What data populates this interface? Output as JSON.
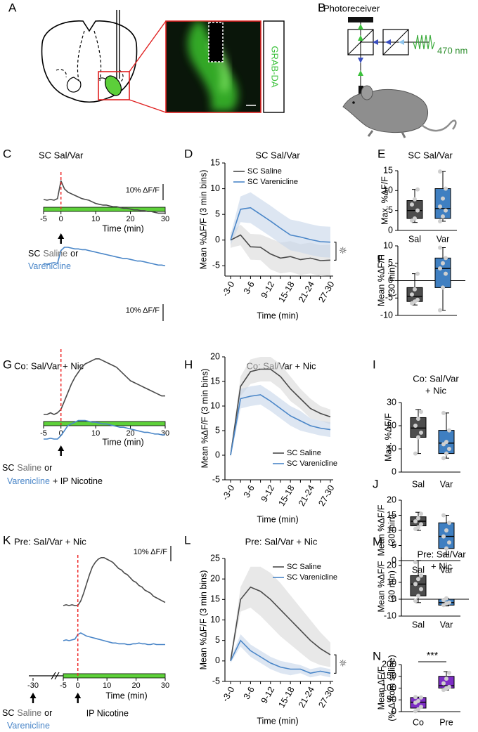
{
  "figure": {
    "panel_labels": [
      "A",
      "B",
      "C",
      "D",
      "E",
      "F",
      "G",
      "H",
      "I",
      "J",
      "K",
      "L",
      "M",
      "N"
    ],
    "grab_label": "GRAB-DA",
    "photoreceiver": "Photoreceiver",
    "wavelength": "470 nm"
  },
  "chart_data": [
    {
      "type": "trace",
      "title": "SC Sal/Var",
      "xlabel": "Time (min)",
      "x": [
        -5,
        -4,
        -3,
        -2,
        -1,
        0,
        1,
        2,
        3,
        4,
        5,
        6,
        7,
        8,
        9,
        10,
        11,
        12,
        13,
        14,
        15,
        16,
        17,
        18,
        19,
        20,
        21,
        22,
        23,
        24,
        25,
        26,
        27,
        28,
        29,
        30
      ],
      "xlim": [
        -5,
        30
      ],
      "xticks": [
        -5,
        0,
        10,
        20,
        30
      ],
      "bar_color": "#5ed13a",
      "event_x": 0,
      "arrows": [
        0
      ],
      "scale_bar": {
        "value": 10,
        "label": "10% ΔF/F"
      },
      "series": [
        {
          "name": "Saline",
          "color": "#4a4a4a",
          "values": [
            0.5,
            0,
            0.5,
            0,
            1,
            12,
            7,
            5,
            4,
            3,
            2,
            1,
            0.5,
            0,
            -1,
            -2,
            -2.5,
            -3,
            -3,
            -3.5,
            -4,
            -4,
            -4.5,
            -5,
            -5,
            -5.5,
            -6,
            -6,
            -6.5,
            -6.5,
            -7,
            -7,
            -7.5,
            -8,
            -8,
            -8
          ]
        },
        {
          "name": "Varenicline",
          "color": "#4a86c8",
          "values": [
            0,
            -0.5,
            0,
            0.5,
            0,
            8,
            10,
            10,
            9.5,
            9,
            9,
            8.5,
            8.5,
            8,
            7.5,
            7,
            6.5,
            6,
            5.5,
            5,
            4.5,
            4,
            3.5,
            3,
            3,
            2.5,
            2,
            1.5,
            1.5,
            1,
            0.5,
            0,
            -0.5,
            -1,
            -1,
            -1.5
          ]
        }
      ],
      "annotation": [
        [
          {
            "text": "SC",
            "color": "#000000"
          },
          {
            "text": "Saline",
            "color": "#6d6d6d"
          },
          {
            "text": "or",
            "color": "#000000"
          }
        ],
        [
          {
            "text": "Varenicline",
            "color": "#4a86c8"
          }
        ]
      ]
    },
    {
      "type": "line",
      "title": "SC Sal/Var",
      "xlabel": "Time (min)",
      "ylabel": "Mean %ΔF/F (3 min bins)",
      "categories": [
        "-3-0",
        null,
        "3-6",
        null,
        "9-12",
        null,
        "15-18",
        null,
        "21-24",
        null,
        "27-30"
      ],
      "ylim": [
        -7,
        15
      ],
      "yticks": [
        -5,
        0,
        5,
        10,
        15
      ],
      "legend": "upper left",
      "annotation": "☼",
      "series": [
        {
          "name": "SC Saline",
          "color": "#4a4a4a",
          "band_color": "#d9d9d9",
          "values": [
            0,
            1,
            -1.3,
            -1.4,
            -2.7,
            -3.5,
            -3.2,
            -3.8,
            -3.5,
            -4,
            -3.9
          ],
          "sem": [
            1.5,
            2,
            2.5,
            2.5,
            3,
            3,
            3,
            3,
            3,
            3,
            3
          ]
        },
        {
          "name": "SC Varenicline",
          "color": "#4a86c8",
          "band_color": "#c6d6ea",
          "values": [
            0,
            6,
            6.3,
            5,
            3.7,
            2.3,
            1,
            0.6,
            0.1,
            -0.3,
            -0.4
          ],
          "sem": [
            1,
            2.5,
            3,
            3,
            3,
            3,
            3,
            3,
            3,
            3,
            3
          ]
        }
      ]
    },
    {
      "type": "box",
      "title": "SC Sal/Var",
      "ylabel": "Max. %ΔF/F",
      "categories": [
        "Sal",
        "Var"
      ],
      "ylim": [
        0,
        15
      ],
      "yticks": [
        0,
        5,
        10,
        15
      ],
      "colors": [
        "#4d4d4d",
        "#3f7fc1"
      ],
      "point_color": "#cfcfcf",
      "boxes": [
        {
          "min": 2,
          "q1": 3,
          "median": 5,
          "q3": 7.5,
          "max": 10.3,
          "points": [
            2.5,
            3,
            5,
            6.5,
            7.8,
            10.3
          ]
        },
        {
          "min": 2.3,
          "q1": 3,
          "median": 5.5,
          "q3": 10.5,
          "max": 14.8,
          "points": [
            2.3,
            3.5,
            5,
            6,
            8,
            10.5,
            14.8
          ]
        }
      ]
    },
    {
      "type": "box",
      "ylabel": [
        "Mean %ΔF/F",
        "(30 min)"
      ],
      "ylim": [
        -10,
        10
      ],
      "yticks": [
        -10,
        -5,
        0,
        5,
        10
      ],
      "colors": [
        "#4d4d4d",
        "#3f7fc1"
      ],
      "point_color": "#cfcfcf",
      "boxes": [
        {
          "min": -7,
          "q1": -6,
          "median": -4.5,
          "q3": -2,
          "max": 2,
          "points": [
            -6.5,
            -6,
            -5.5,
            -4,
            -2.5,
            2
          ]
        },
        {
          "min": -8.5,
          "q1": -2,
          "median": 3.5,
          "q3": 6.5,
          "max": 9.5,
          "points": [
            -8.5,
            -2,
            2,
            3.5,
            5,
            6.5,
            9.5
          ]
        }
      ]
    },
    {
      "type": "trace",
      "title": "Co: Sal/Var + Nic",
      "xlabel": "Time (min)",
      "x": [
        -5,
        -4,
        -3,
        -2,
        -1,
        0,
        1,
        2,
        3,
        4,
        5,
        6,
        7,
        8,
        9,
        10,
        11,
        12,
        13,
        14,
        15,
        16,
        17,
        18,
        19,
        20,
        21,
        22,
        23,
        24,
        25,
        26,
        27,
        28,
        29,
        30
      ],
      "xlim": [
        -5,
        30
      ],
      "xticks": [
        -5,
        0,
        10,
        20,
        30
      ],
      "bar_color": "#5ed13a",
      "event_x": 0,
      "arrows": [
        0
      ],
      "scale_bar": {
        "value": 10,
        "label": "10% ΔF/F"
      },
      "series": [
        {
          "name": "Saline",
          "color": "#4a4a4a",
          "values": [
            0,
            0,
            1,
            0,
            1,
            3,
            8,
            13,
            18,
            22,
            25,
            28,
            30,
            31,
            32,
            33,
            33,
            32,
            31,
            30,
            29,
            28,
            26,
            24,
            22,
            20,
            19,
            18,
            17,
            16,
            15,
            14,
            13,
            12,
            11,
            11
          ]
        },
        {
          "name": "Varenicline",
          "color": "#4a86c8",
          "values": [
            0,
            0,
            0.5,
            0,
            0,
            2,
            5,
            8,
            9,
            10,
            11,
            11,
            11,
            10.5,
            10,
            10,
            9.5,
            9,
            9,
            8.5,
            8,
            7.5,
            7,
            7,
            6.5,
            6,
            5.5,
            5,
            4.5,
            4,
            4,
            3.5,
            3,
            3,
            2.5,
            2.5
          ]
        }
      ],
      "annotation": [
        [
          {
            "text": "SC",
            "color": "#000000"
          },
          {
            "text": "Saline",
            "color": "#6d6d6d"
          },
          {
            "text": "or",
            "color": "#000000"
          }
        ],
        [
          {
            "text": "Varenicline",
            "color": "#4a86c8"
          },
          {
            "text": "+ IP Nicotine",
            "color": "#000000"
          }
        ]
      ]
    },
    {
      "type": "line",
      "title": "Co: Sal/Var + Nic",
      "xlabel": "Time (min)",
      "ylabel": "Mean %ΔF/F (3 min bins)",
      "categories": [
        "-3-0",
        null,
        "3-6",
        null,
        "9-12",
        null,
        "15-18",
        null,
        "21-24",
        null,
        "27-30"
      ],
      "ylim": [
        -5,
        20
      ],
      "yticks": [
        -5,
        0,
        5,
        10,
        15,
        20
      ],
      "legend": "lower right",
      "series": [
        {
          "name": "SC Saline",
          "color": "#4a4a4a",
          "band_color": "#d9d9d9",
          "values": [
            0,
            14,
            17,
            17.5,
            17.5,
            16,
            13.5,
            11.5,
            9.5,
            8.5,
            7.8
          ],
          "sem": [
            0.5,
            2,
            2.5,
            2.5,
            2.5,
            2.5,
            2.5,
            2,
            2,
            1.5,
            1.5
          ]
        },
        {
          "name": "SC Varenicline",
          "color": "#4a86c8",
          "band_color": "#c6d6ea",
          "values": [
            0,
            11.5,
            12,
            12.3,
            11,
            9.5,
            8,
            7,
            6,
            5.5,
            5.2
          ],
          "sem": [
            0.5,
            2,
            2,
            2,
            2,
            2,
            2,
            2,
            1.5,
            1.5,
            1.5
          ]
        }
      ]
    },
    {
      "type": "box",
      "title": [
        "Co: Sal/Var",
        "+ Nic"
      ],
      "ylabel": "Max. %ΔF/F",
      "categories": [
        "Sal",
        "Var"
      ],
      "ylim": [
        0,
        30
      ],
      "yticks": [
        0,
        10,
        20,
        30
      ],
      "colors": [
        "#4d4d4d",
        "#3f7fc1"
      ],
      "point_color": "#cfcfcf",
      "boxes": [
        {
          "min": 8,
          "q1": 15,
          "median": 19,
          "q3": 23.5,
          "max": 27,
          "points": [
            8,
            15,
            17,
            20,
            23,
            26
          ]
        },
        {
          "min": 6,
          "q1": 8,
          "median": 12.5,
          "q3": 18,
          "max": 25.5,
          "points": [
            6,
            8,
            10,
            12,
            13,
            18,
            25.5
          ]
        }
      ]
    },
    {
      "type": "box",
      "ylabel": [
        "Mean %ΔF/F",
        "(30 min)"
      ],
      "categories": [
        "Sal",
        "Var"
      ],
      "ylim": [
        0,
        20
      ],
      "yticks": [
        0,
        5,
        10,
        15,
        20
      ],
      "colors": [
        "#4d4d4d",
        "#3f7fc1"
      ],
      "point_color": "#cfcfcf",
      "boxes": [
        {
          "min": 10,
          "q1": 11.5,
          "median": 13,
          "q3": 14.5,
          "max": 16,
          "points": [
            10.5,
            11,
            12,
            13,
            14,
            15.5
          ]
        },
        {
          "min": 2,
          "q1": 4,
          "median": 8,
          "q3": 12.5,
          "max": 15,
          "points": [
            2,
            4,
            6,
            8,
            10,
            12.5,
            15
          ]
        }
      ]
    },
    {
      "type": "trace",
      "title": "Pre: Sal/Var + Nic",
      "xlabel": "Time (min)",
      "x": [
        -5,
        -4,
        -3,
        -2,
        -1,
        0,
        1,
        2,
        3,
        4,
        5,
        6,
        7,
        8,
        9,
        10,
        11,
        12,
        13,
        14,
        15,
        16,
        17,
        18,
        19,
        20,
        21,
        22,
        23,
        24,
        25,
        26,
        27,
        28,
        29,
        30
      ],
      "xlim": [
        -5,
        30
      ],
      "xticks": [
        -30,
        -5,
        0,
        10,
        20,
        30
      ],
      "axis_break": true,
      "bar_color": "#5ed13a",
      "event_x": 0,
      "arrows": [
        -30,
        0
      ],
      "scale_bar": {
        "value": 10,
        "label": "10% ΔF/F"
      },
      "series": [
        {
          "name": "Saline",
          "color": "#4a4a4a",
          "values": [
            0,
            0.5,
            0,
            0.5,
            0,
            0,
            3,
            8,
            14,
            20,
            25,
            28,
            30,
            31,
            31,
            30,
            29,
            28,
            26,
            24,
            23,
            21,
            20,
            18,
            16,
            15,
            13,
            12,
            10,
            9,
            8,
            6,
            5,
            4,
            3,
            2
          ]
        },
        {
          "name": "Varenicline",
          "color": "#4a86c8",
          "values": [
            0,
            0.5,
            0,
            0.5,
            1,
            4,
            5,
            4,
            3,
            2.5,
            2,
            1.5,
            1,
            0.5,
            0,
            -0.5,
            -1,
            -1.5,
            -1.5,
            -2,
            -2,
            -2,
            -2.5,
            -2.5,
            -2,
            -2,
            -1.5,
            -2,
            -2,
            -2.5,
            -2.5,
            -2,
            -2.5,
            -2.5,
            -2.5,
            -2.5
          ]
        }
      ],
      "annotation": [
        [
          {
            "text": "SC",
            "color": "#000000"
          },
          {
            "text": "Saline",
            "color": "#6d6d6d"
          },
          {
            "text": "or",
            "color": "#000000"
          }
        ],
        [
          {
            "text": "Varenicline",
            "color": "#4a86c8"
          }
        ]
      ],
      "annotation_right": "IP Nicotine"
    },
    {
      "type": "line",
      "title": "Pre: Sal/Var + Nic",
      "xlabel": "Time (min)",
      "ylabel": "Mean %ΔF/F (3 min bins)",
      "categories": [
        "-3-0",
        null,
        "3-6",
        null,
        "9-12",
        null,
        "15-18",
        null,
        "21-24",
        null,
        "27-30"
      ],
      "ylim": [
        -5,
        25
      ],
      "yticks": [
        -5,
        0,
        5,
        10,
        15,
        20,
        25
      ],
      "legend": "upper right",
      "annotation": "☼",
      "series": [
        {
          "name": "SC Saline",
          "color": "#4a4a4a",
          "band_color": "#d9d9d9",
          "values": [
            0,
            15,
            18,
            17,
            15,
            12.5,
            10,
            7.5,
            5,
            3,
            1.5
          ],
          "sem": [
            0.5,
            3,
            5,
            6,
            6.5,
            6.5,
            6,
            5.5,
            5,
            4,
            3
          ]
        },
        {
          "name": "SC Varenicline",
          "color": "#4a86c8",
          "band_color": "#c6d6ea",
          "values": [
            0,
            5,
            2.5,
            1,
            -0.5,
            -1.5,
            -2,
            -2,
            -3,
            -2.5,
            -3
          ],
          "sem": [
            0.5,
            1.5,
            1.5,
            1.5,
            1.5,
            1.5,
            1.5,
            1,
            1,
            1,
            1
          ]
        }
      ]
    },
    {
      "type": "box",
      "title": [
        "Pre: Sal/Var",
        "+ Nic"
      ],
      "ylabel": [
        "Mean %ΔF/F",
        "(30 min)"
      ],
      "categories": [
        "Sal",
        "Var"
      ],
      "ylim": [
        -10,
        25
      ],
      "yticks": [
        -10,
        0,
        10,
        20
      ],
      "colors": [
        "#4d4d4d",
        "#3f7fc1"
      ],
      "point_color": "#cfcfcf",
      "boxes": [
        {
          "min": -2,
          "q1": 2,
          "median": 9,
          "q3": 14,
          "max": 23,
          "points": [
            -1,
            2,
            6,
            9,
            12,
            14,
            22
          ]
        },
        {
          "min": -4,
          "q1": -3.5,
          "median": -2,
          "q3": 0,
          "max": 0.5,
          "points": [
            -3.5,
            -2.5,
            -2,
            -0.5,
            0.5
          ]
        }
      ]
    },
    {
      "type": "box",
      "ylabel": [
        "Mean ΔF/F",
        "(% Δ from saline)"
      ],
      "categories": [
        "Co",
        "Pre"
      ],
      "ylim": [
        0,
        200
      ],
      "yticks": [
        0,
        50,
        100,
        150,
        200
      ],
      "colors": [
        "#7d2ec5",
        "#7d2ec5"
      ],
      "point_color": "#cfcfcf",
      "annotation": "***",
      "boxes": [
        {
          "min": 0,
          "q1": 15,
          "median": 40,
          "q3": 60,
          "max": 62,
          "points": [
            2,
            10,
            20,
            38,
            45,
            60,
            62
          ]
        },
        {
          "min": 92,
          "q1": 100,
          "median": 110,
          "q3": 150,
          "max": 170,
          "points": [
            92,
            100,
            105,
            120,
            140,
            165
          ]
        }
      ]
    }
  ]
}
